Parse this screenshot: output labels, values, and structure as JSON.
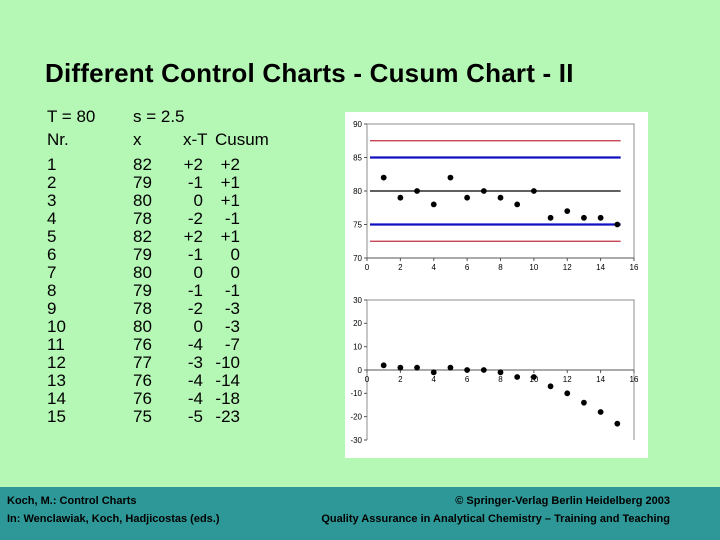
{
  "slide": {
    "title": "Different Control Charts - Cusum Chart - II",
    "background_color": "#B5F7B5",
    "footer_bar_color": "#2E9898"
  },
  "table": {
    "params": {
      "target": "T = 80",
      "sd": "s = 2.5"
    },
    "columns": [
      "Nr.",
      "x",
      "x-T",
      "Cusum"
    ],
    "rows": [
      {
        "nr": "1",
        "x": "82",
        "xt": "+2",
        "cusum": "+2"
      },
      {
        "nr": "2",
        "x": "79",
        "xt": "-1",
        "cusum": "+1"
      },
      {
        "nr": "3",
        "x": "80",
        "xt": "0",
        "cusum": "+1"
      },
      {
        "nr": "4",
        "x": "78",
        "xt": "-2",
        "cusum": "-1"
      },
      {
        "nr": "5",
        "x": "82",
        "xt": "+2",
        "cusum": "+1"
      },
      {
        "nr": "6",
        "x": "79",
        "xt": "-1",
        "cusum": "0"
      },
      {
        "nr": "7",
        "x": "80",
        "xt": "0",
        "cusum": "0"
      },
      {
        "nr": "8",
        "x": "79",
        "xt": "-1",
        "cusum": "-1"
      },
      {
        "nr": "9",
        "x": "78",
        "xt": "-2",
        "cusum": "-3"
      },
      {
        "nr": "10",
        "x": "80",
        "xt": "0",
        "cusum": "-3"
      },
      {
        "nr": "11",
        "x": "76",
        "xt": "-4",
        "cusum": "-7"
      },
      {
        "nr": "12",
        "x": "77",
        "xt": "-3",
        "cusum": "-10"
      },
      {
        "nr": "13",
        "x": "76",
        "xt": "-4",
        "cusum": "-14"
      },
      {
        "nr": "14",
        "x": "76",
        "xt": "-4",
        "cusum": "-18"
      },
      {
        "nr": "15",
        "x": "75",
        "xt": "-5",
        "cusum": "-23"
      }
    ]
  },
  "chart_data": [
    {
      "type": "scatter",
      "name": "individuals-control-chart",
      "x": [
        1,
        2,
        3,
        4,
        5,
        6,
        7,
        8,
        9,
        10,
        11,
        12,
        13,
        14,
        15
      ],
      "y": [
        82,
        79,
        80,
        78,
        82,
        79,
        80,
        79,
        78,
        80,
        76,
        77,
        76,
        76,
        75
      ],
      "xlim": [
        0,
        16
      ],
      "ylim": [
        70,
        90
      ],
      "x_ticks": [
        0,
        2,
        4,
        6,
        8,
        10,
        12,
        14,
        16
      ],
      "y_ticks": [
        70,
        75,
        80,
        85,
        90
      ],
      "reference_lines": [
        {
          "y": 87.5,
          "role": "action",
          "color": "#C03040"
        },
        {
          "y": 85,
          "role": "warning",
          "color": "#1010C0"
        },
        {
          "y": 80,
          "role": "center",
          "color": "#000000"
        },
        {
          "y": 75,
          "role": "warning",
          "color": "#1010C0"
        },
        {
          "y": 72.5,
          "role": "action",
          "color": "#C03040"
        }
      ],
      "marker_color": "#000000",
      "grid": false,
      "legend": false
    },
    {
      "type": "scatter",
      "name": "cusum-chart",
      "x": [
        1,
        2,
        3,
        4,
        5,
        6,
        7,
        8,
        9,
        10,
        11,
        12,
        13,
        14,
        15
      ],
      "y": [
        2,
        1,
        1,
        -1,
        1,
        0,
        0,
        -1,
        -3,
        -3,
        -7,
        -10,
        -14,
        -18,
        -23
      ],
      "xlim": [
        0,
        16
      ],
      "ylim": [
        -30,
        30
      ],
      "x_ticks": [
        0,
        2,
        4,
        6,
        8,
        10,
        12,
        14,
        16
      ],
      "y_ticks": [
        30,
        20,
        10,
        0,
        -10,
        -20,
        -30
      ],
      "reference_lines": [],
      "marker_color": "#000000",
      "grid": false,
      "legend": false
    }
  ],
  "footer": {
    "left_line1": "Koch, M.: Control Charts",
    "left_line2": "In:  Wenclawiak, Koch, Hadjicostas (eds.)",
    "right_line1": "© Springer-Verlag Berlin Heidelberg 2003",
    "right_line2": "Quality Assurance in Analytical Chemistry – Training and Teaching"
  }
}
